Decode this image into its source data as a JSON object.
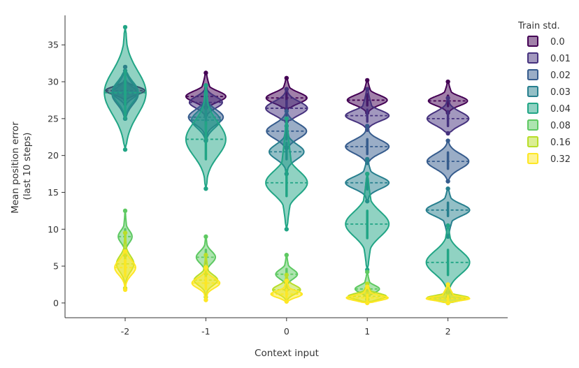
{
  "chart_data": {
    "type": "violin",
    "xlabel": "Context input",
    "ylabel": [
      "Mean position error",
      "(last 10 steps)"
    ],
    "categories": [
      "-2",
      "-1",
      "0",
      "1",
      "2"
    ],
    "ylim": [
      -2,
      39
    ],
    "yticks": [
      0,
      5,
      10,
      15,
      20,
      25,
      30,
      35
    ],
    "legend": {
      "title": "Train std.",
      "position": "right"
    },
    "series": [
      {
        "name": "0.0",
        "color": "#440154",
        "violins": [
          {
            "median": 28.8,
            "p05": 28.2,
            "p95": 29.4,
            "lo": 27.6,
            "hi": 30.0,
            "w": 0.45
          },
          {
            "median": 28.0,
            "p05": 27.2,
            "p95": 28.8,
            "lo": 26.5,
            "hi": 31.2,
            "w": 0.46
          },
          {
            "median": 27.8,
            "p05": 27.0,
            "p95": 28.6,
            "lo": 26.3,
            "hi": 30.5,
            "w": 0.47
          },
          {
            "median": 27.5,
            "p05": 26.8,
            "p95": 28.3,
            "lo": 25.8,
            "hi": 30.2,
            "w": 0.46
          },
          {
            "median": 27.4,
            "p05": 26.7,
            "p95": 28.1,
            "lo": 25.8,
            "hi": 30.0,
            "w": 0.45
          }
        ]
      },
      {
        "name": "0.01",
        "color": "#46327e",
        "violins": [
          {
            "median": 28.5,
            "p05": 27.7,
            "p95": 29.3,
            "lo": 27.0,
            "hi": 30.0,
            "w": 0.3
          },
          {
            "median": 27.2,
            "p05": 26.3,
            "p95": 28.0,
            "lo": 25.5,
            "hi": 29.5,
            "w": 0.38
          },
          {
            "median": 26.4,
            "p05": 25.4,
            "p95": 27.4,
            "lo": 24.6,
            "hi": 29.0,
            "w": 0.48
          },
          {
            "median": 25.4,
            "p05": 24.6,
            "p95": 26.2,
            "lo": 23.5,
            "hi": 29.0,
            "w": 0.5
          },
          {
            "median": 25.0,
            "p05": 24.0,
            "p95": 26.0,
            "lo": 23.0,
            "hi": 27.8,
            "w": 0.48
          }
        ]
      },
      {
        "name": "0.02",
        "color": "#365c8d",
        "violins": [
          {
            "median": 28.3,
            "p05": 26.8,
            "p95": 29.8,
            "lo": 25.0,
            "hi": 32.0,
            "w": 0.3
          },
          {
            "median": 25.2,
            "p05": 24.2,
            "p95": 26.4,
            "lo": 22.0,
            "hi": 28.0,
            "w": 0.4
          },
          {
            "median": 23.3,
            "p05": 22.2,
            "p95": 24.4,
            "lo": 21.0,
            "hi": 26.0,
            "w": 0.46
          },
          {
            "median": 21.2,
            "p05": 20.2,
            "p95": 22.2,
            "lo": 19.0,
            "hi": 24.0,
            "w": 0.5
          },
          {
            "median": 19.2,
            "p05": 18.2,
            "p95": 20.4,
            "lo": 16.5,
            "hi": 22.0,
            "w": 0.48
          }
        ]
      },
      {
        "name": "0.03",
        "color": "#277f8e",
        "violins": [
          {
            "median": 28.6,
            "p05": 27.0,
            "p95": 30.0,
            "lo": 25.0,
            "hi": 31.5,
            "w": 0.3
          },
          {
            "median": 24.8,
            "p05": 23.6,
            "p95": 26.0,
            "lo": 22.0,
            "hi": 28.5,
            "w": 0.33
          },
          {
            "median": 20.5,
            "p05": 19.5,
            "p95": 21.7,
            "lo": 17.5,
            "hi": 24.0,
            "w": 0.4
          },
          {
            "median": 16.3,
            "p05": 15.4,
            "p95": 17.2,
            "lo": 13.8,
            "hi": 19.5,
            "w": 0.5
          },
          {
            "median": 12.6,
            "p05": 11.8,
            "p95": 13.6,
            "lo": 9.0,
            "hi": 15.5,
            "w": 0.5
          }
        ]
      },
      {
        "name": "0.04",
        "color": "#21a585",
        "violins": [
          {
            "median": 28.5,
            "p05": 25.0,
            "p95": 31.5,
            "lo": 20.8,
            "hi": 37.4,
            "w": 0.48
          },
          {
            "median": 22.2,
            "p05": 19.5,
            "p95": 24.5,
            "lo": 15.5,
            "hi": 29.5,
            "w": 0.46
          },
          {
            "median": 16.3,
            "p05": 14.5,
            "p95": 18.0,
            "lo": 10.0,
            "hi": 25.0,
            "w": 0.48
          },
          {
            "median": 10.7,
            "p05": 8.8,
            "p95": 12.5,
            "lo": 4.5,
            "hi": 17.5,
            "w": 0.5
          },
          {
            "median": 5.5,
            "p05": 3.8,
            "p95": 7.2,
            "lo": 0.8,
            "hi": 10.5,
            "w": 0.5
          }
        ]
      },
      {
        "name": "0.08",
        "color": "#5ec962",
        "violins": [
          {
            "median": 9.0,
            "p05": 8.2,
            "p95": 10.0,
            "lo": 6.5,
            "hi": 12.5,
            "w": 0.16
          },
          {
            "median": 6.2,
            "p05": 5.4,
            "p95": 7.2,
            "lo": 4.0,
            "hi": 9.0,
            "w": 0.22
          },
          {
            "median": 3.9,
            "p05": 3.2,
            "p95": 4.6,
            "lo": 1.8,
            "hi": 6.5,
            "w": 0.25
          },
          {
            "median": 1.9,
            "p05": 1.4,
            "p95": 2.5,
            "lo": 0.5,
            "hi": 4.2,
            "w": 0.28
          },
          {
            "median": 0.6,
            "p05": 0.3,
            "p95": 1.0,
            "lo": 0.0,
            "hi": 2.2,
            "w": 0.4
          }
        ]
      },
      {
        "name": "0.16",
        "color": "#b8de29",
        "violins": [
          {
            "median": 5.3,
            "p05": 4.2,
            "p95": 6.6,
            "lo": 2.0,
            "hi": 9.5,
            "w": 0.2
          },
          {
            "median": 3.1,
            "p05": 2.4,
            "p95": 4.0,
            "lo": 0.8,
            "hi": 6.5,
            "w": 0.27
          },
          {
            "median": 1.8,
            "p05": 1.2,
            "p95": 2.5,
            "lo": 0.3,
            "hi": 3.8,
            "w": 0.32
          },
          {
            "median": 0.9,
            "p05": 0.5,
            "p95": 1.4,
            "lo": 0.1,
            "hi": 2.6,
            "w": 0.44
          },
          {
            "median": 0.7,
            "p05": 0.4,
            "p95": 1.1,
            "lo": 0.0,
            "hi": 2.5,
            "w": 0.48
          }
        ]
      },
      {
        "name": "0.32",
        "color": "#fde725",
        "violins": [
          {
            "median": 4.8,
            "p05": 3.6,
            "p95": 5.8,
            "lo": 1.8,
            "hi": 7.0,
            "w": 0.24
          },
          {
            "median": 2.7,
            "p05": 1.9,
            "p95": 3.4,
            "lo": 0.4,
            "hi": 4.8,
            "w": 0.32
          },
          {
            "median": 1.2,
            "p05": 0.8,
            "p95": 1.8,
            "lo": 0.2,
            "hi": 3.0,
            "w": 0.36
          },
          {
            "median": 0.7,
            "p05": 0.3,
            "p95": 1.1,
            "lo": 0.0,
            "hi": 2.2,
            "w": 0.48
          },
          {
            "median": 0.6,
            "p05": 0.3,
            "p95": 0.9,
            "lo": 0.0,
            "hi": 2.5,
            "w": 0.5
          }
        ]
      }
    ]
  }
}
